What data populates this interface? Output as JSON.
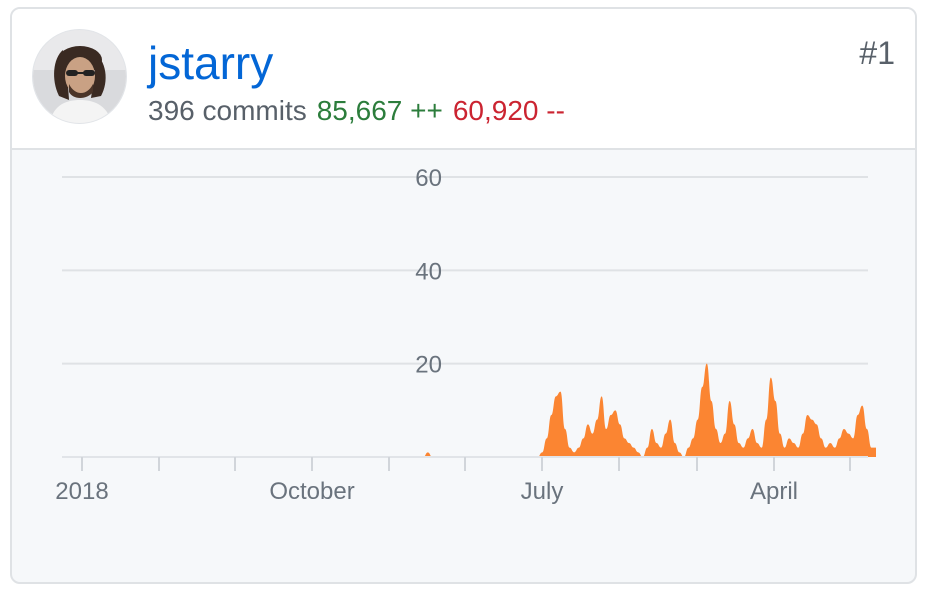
{
  "contributor": {
    "username": "jstarry",
    "rank": "#1",
    "commits_text": "396 commits",
    "additions_text": "85,667 ++",
    "deletions_text": "60,920 --",
    "avatar_icon": "user-avatar-photo"
  },
  "colors": {
    "link": "#0366d6",
    "additions": "#2c7d3c",
    "deletions": "#cb2431",
    "area": "#fb8532"
  },
  "chart_data": {
    "type": "area",
    "y_ticks": [
      "60",
      "40",
      "20"
    ],
    "ylim": [
      0,
      60
    ],
    "x_tick_labels": [
      "2018",
      "October",
      "July",
      "April"
    ],
    "grid": true,
    "series": [
      {
        "values": [
          0,
          0,
          0,
          0,
          0,
          0,
          0,
          0,
          0,
          0,
          0,
          0,
          0,
          0,
          0,
          0,
          0,
          0,
          0,
          0,
          0,
          0,
          0,
          0,
          0,
          0,
          0,
          0,
          0,
          0,
          0,
          0,
          0,
          0,
          0,
          0,
          0,
          0,
          0,
          0,
          0,
          0,
          0,
          0,
          0,
          0,
          0,
          0,
          0,
          0,
          0,
          0,
          0,
          0,
          0,
          0,
          0,
          0,
          0,
          0,
          0,
          0,
          0,
          0,
          0,
          0,
          0,
          0,
          0,
          0,
          0,
          0,
          0,
          0,
          0,
          0,
          0,
          0,
          0,
          0,
          1,
          0,
          0,
          0,
          0,
          0,
          0,
          0,
          0,
          0,
          0,
          0,
          0,
          0,
          0,
          0,
          0,
          0,
          0,
          0,
          0,
          0,
          0,
          0,
          0,
          1,
          4,
          9,
          13,
          14,
          6,
          2,
          1,
          2,
          4,
          7,
          5,
          8,
          13,
          6,
          9,
          10,
          7,
          4,
          3,
          2,
          1,
          0,
          2,
          6,
          3,
          2,
          5,
          8,
          3,
          1,
          0,
          2,
          4,
          8,
          15,
          20,
          12,
          6,
          3,
          5,
          12,
          7,
          3,
          2,
          4,
          6,
          3,
          2,
          8,
          17,
          12,
          5,
          2,
          4,
          3,
          2,
          5,
          9,
          8,
          7,
          4,
          2,
          3,
          2,
          4,
          6,
          5,
          4,
          9,
          11,
          6,
          2,
          2
        ]
      }
    ]
  }
}
